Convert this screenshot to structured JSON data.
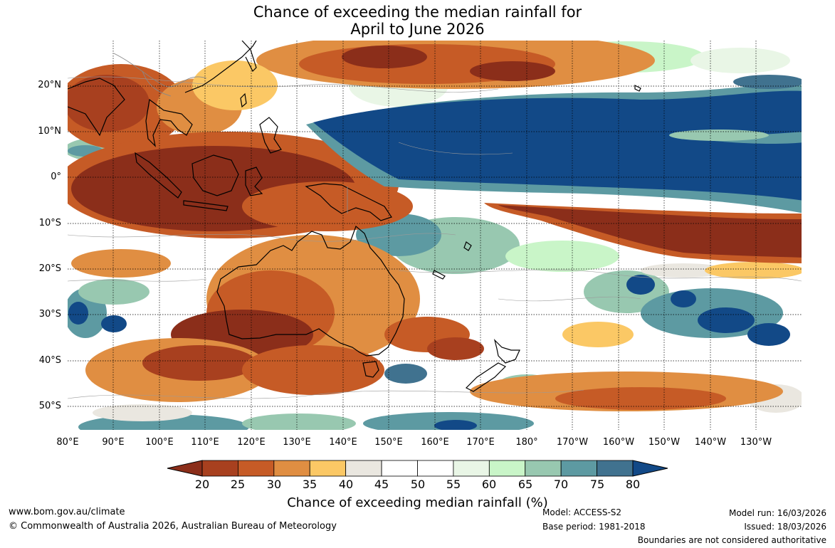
{
  "title": {
    "line1": "Chance of exceeding the median rainfall for",
    "line2": "April to June 2026"
  },
  "map": {
    "latitude_labels": [
      "20°N",
      "10°N",
      "0°",
      "10°S",
      "20°S",
      "30°S",
      "40°S",
      "50°S"
    ],
    "longitude_labels": [
      "80°E",
      "90°E",
      "100°E",
      "110°E",
      "120°E",
      "130°E",
      "140°E",
      "150°E",
      "160°E",
      "170°E",
      "180°",
      "170°W",
      "160°W",
      "150°W",
      "140°W",
      "130°W"
    ],
    "category_colors": {
      "below_20": "#8b2e1a",
      "20_25": "#a8401f",
      "25_30": "#c65b26",
      "30_35": "#e08e42",
      "35_40": "#fbc865",
      "40_45": "#eae7e0",
      "45_55": "#ffffff",
      "55_60": "#e9f6e6",
      "60_65": "#c9f5c8",
      "65_70": "#98c8b0",
      "70_75": "#5d9aa2",
      "75_80": "#40728f",
      "above_80": "#124987"
    }
  },
  "colorbar": {
    "ticks": [
      "20",
      "25",
      "30",
      "35",
      "40",
      "45",
      "50",
      "55",
      "60",
      "65",
      "70",
      "75",
      "80"
    ],
    "colors": [
      "#a8401f",
      "#c65b26",
      "#e08e42",
      "#fbc865",
      "#eae7e0",
      "#ffffff",
      "#ffffff",
      "#e9f6e6",
      "#c9f5c8",
      "#98c8b0",
      "#5d9aa2",
      "#40728f"
    ],
    "low_arrow_color": "#8b2e1a",
    "high_arrow_color": "#124987",
    "label": "Chance of exceeding median rainfall (%)"
  },
  "footer": {
    "website": "www.bom.gov.au/climate",
    "copyright": "© Commonwealth of Australia 2026, Australian Bureau of Meteorology",
    "model": "Model: ACCESS-S2",
    "base_period": "Base period: 1981-2018",
    "model_run": "Model run: 16/03/2026",
    "issued": "Issued: 18/03/2026",
    "disclaimer": "Boundaries are not considered authoritative"
  }
}
